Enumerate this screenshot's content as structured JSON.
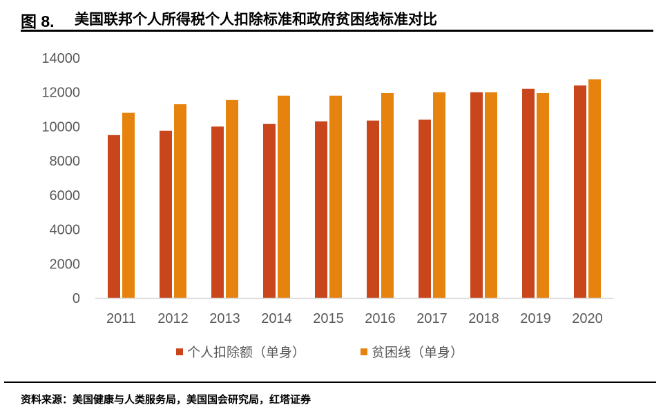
{
  "figure": {
    "number": "图 8.",
    "title": "美国联邦个人所得税个人扣除标准和政府贫困线标准对比",
    "source": "资料来源：美国健康与人类服务局，美国国会研究局，红塔证券"
  },
  "chart_data": {
    "type": "bar",
    "categories": [
      "2011",
      "2012",
      "2013",
      "2014",
      "2015",
      "2016",
      "2017",
      "2018",
      "2019",
      "2020"
    ],
    "series": [
      {
        "name": "个人扣除额（单身）",
        "color": "#C9461C",
        "values": [
          9500,
          9750,
          10000,
          10150,
          10300,
          10350,
          10400,
          12000,
          12200,
          12400
        ]
      },
      {
        "name": "贫困线（单身）",
        "color": "#E6820E",
        "values": [
          10800,
          11300,
          11550,
          11800,
          11800,
          11950,
          12000,
          12000,
          11950,
          12750
        ]
      }
    ],
    "ylim": [
      0,
      14000
    ],
    "yticks": [
      "0",
      "2000",
      "4000",
      "6000",
      "8000",
      "10000",
      "12000",
      "14000"
    ],
    "grid": false,
    "legend": "bottom"
  }
}
